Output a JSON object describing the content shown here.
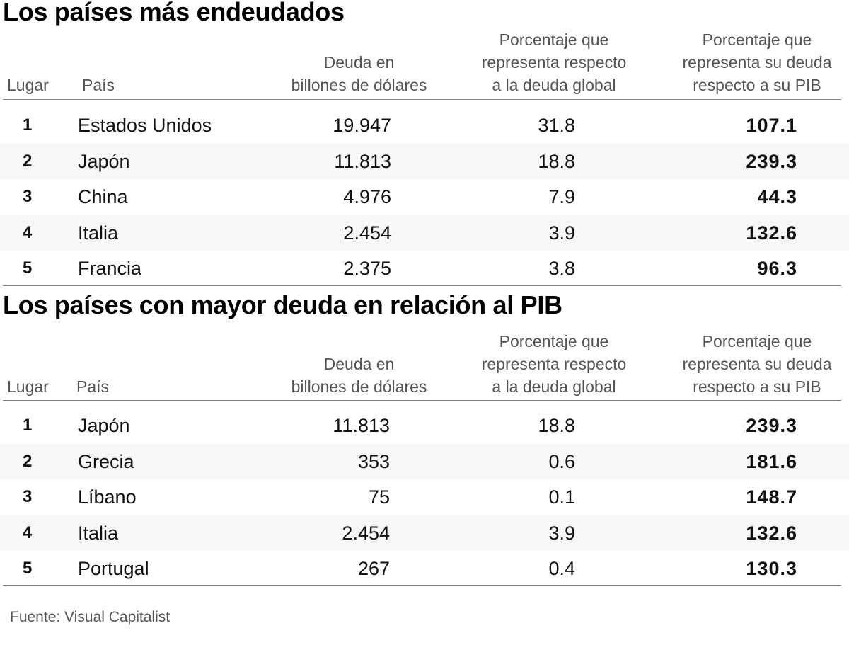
{
  "chart_data": [
    {
      "type": "table",
      "title": "Los países más endeudados",
      "columns": [
        "Lugar",
        "País",
        "Deuda en billones de dólares",
        "Porcentaje que representa respecto a la deuda global",
        "Porcentaje que representa su deuda respecto a su PIB"
      ],
      "header_lines": {
        "rank": [
          "Lugar"
        ],
        "country": [
          "País"
        ],
        "debt": [
          "Deuda en",
          "billones de dólares"
        ],
        "share": [
          "Porcentaje que",
          "representa respecto",
          "a la deuda global"
        ],
        "gdp": [
          "Porcentaje que",
          "representa su deuda",
          "respecto a su PIB"
        ]
      },
      "rows": [
        {
          "rank": "1",
          "country": "Estados Unidos",
          "debt": "19.947",
          "share": "31.8",
          "gdp": "107.1"
        },
        {
          "rank": "2",
          "country": "Japón",
          "debt": "11.813",
          "share": "18.8",
          "gdp": "239.3"
        },
        {
          "rank": "3",
          "country": "China",
          "debt": "4.976",
          "share": "7.9",
          "gdp": "44.3"
        },
        {
          "rank": "4",
          "country": "Italia",
          "debt": "2.454",
          "share": "3.9",
          "gdp": "132.6"
        },
        {
          "rank": "5",
          "country": "Francia",
          "debt": "2.375",
          "share": "3.8",
          "gdp": "96.3"
        }
      ]
    },
    {
      "type": "table",
      "title": "Los países con mayor deuda en relación al PIB",
      "columns": [
        "Lugar",
        "País",
        "Deuda en billones de dólares",
        "Porcentaje que representa respecto a la deuda global",
        "Porcentaje que representa su deuda respecto a su PIB"
      ],
      "header_lines": {
        "rank": [
          "Lugar"
        ],
        "country": [
          "País"
        ],
        "debt": [
          "Deuda en",
          "billones de dólares"
        ],
        "share": [
          "Porcentaje que",
          "representa respecto",
          "a la deuda global"
        ],
        "gdp": [
          "Porcentaje que",
          "representa su deuda",
          "respecto a su PIB"
        ]
      },
      "rows": [
        {
          "rank": "1",
          "country": "Japón",
          "debt": "11.813",
          "share": "18.8",
          "gdp": "239.3"
        },
        {
          "rank": "2",
          "country": "Grecia",
          "debt": "353",
          "share": "0.6",
          "gdp": "181.6"
        },
        {
          "rank": "3",
          "country": "Líbano",
          "debt": "75",
          "share": "0.1",
          "gdp": "148.7"
        },
        {
          "rank": "4",
          "country": "Italia",
          "debt": "2.454",
          "share": "3.9",
          "gdp": "132.6"
        },
        {
          "rank": "5",
          "country": "Portugal",
          "debt": "267",
          "share": "0.4",
          "gdp": "130.3"
        }
      ]
    }
  ],
  "source": "Fuente: Visual Capitalist",
  "colors": {
    "row_alt": "#f7f7f7",
    "header_text": "#555555",
    "rule": "#888888"
  }
}
